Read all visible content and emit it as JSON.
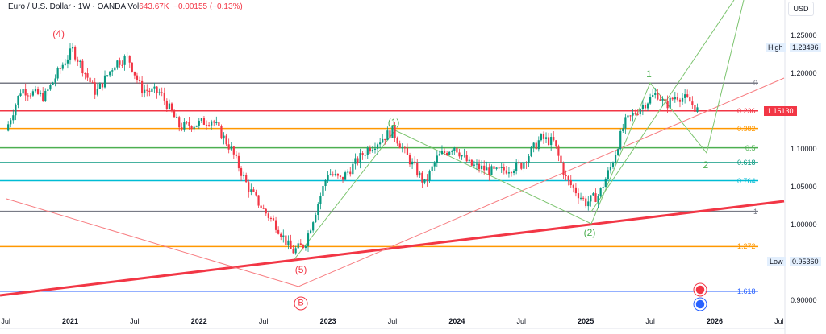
{
  "header": {
    "symbol": "Euro / U.S. Dollar · 1W · OANDA",
    "vol_label": "Vol",
    "vol_value": "643.67K",
    "change": "−0.00155 (−0.13%)"
  },
  "currency": "USD",
  "chart_data": {
    "type": "candlestick",
    "title": "Euro / U.S. Dollar · 1W · OANDA",
    "ylim": [
      0.88,
      1.29
    ],
    "xlim": [
      2020.49,
      2026.55
    ],
    "y_ticks": [
      "1.25000",
      "1.20000",
      "1.10000",
      "1.05000",
      "1.00000",
      "0.90000"
    ],
    "y_tick_values": [
      1.25,
      1.2,
      1.1,
      1.05,
      1.0,
      0.9
    ],
    "x_ticks": [
      {
        "label": "Jul",
        "t": 2020.5,
        "bold": false
      },
      {
        "label": "2021",
        "t": 2021,
        "bold": true
      },
      {
        "label": "Jul",
        "t": 2021.5,
        "bold": false
      },
      {
        "label": "2022",
        "t": 2022,
        "bold": true
      },
      {
        "label": "Jul",
        "t": 2022.5,
        "bold": false
      },
      {
        "label": "2023",
        "t": 2023,
        "bold": true
      },
      {
        "label": "Jul",
        "t": 2023.5,
        "bold": false
      },
      {
        "label": "2024",
        "t": 2024,
        "bold": true
      },
      {
        "label": "Jul",
        "t": 2024.5,
        "bold": false
      },
      {
        "label": "2025",
        "t": 2025,
        "bold": true
      },
      {
        "label": "Jul",
        "t": 2025.5,
        "bold": false
      },
      {
        "label": "2026",
        "t": 2026,
        "bold": true
      },
      {
        "label": "Jul",
        "t": 2026.5,
        "bold": false
      }
    ],
    "close_anchors": [
      [
        2020.5,
        1.125
      ],
      [
        2020.62,
        1.18
      ],
      [
        2020.8,
        1.17
      ],
      [
        2020.95,
        1.215
      ],
      [
        2021.02,
        1.232
      ],
      [
        2021.2,
        1.175
      ],
      [
        2021.35,
        1.215
      ],
      [
        2021.45,
        1.222
      ],
      [
        2021.55,
        1.18
      ],
      [
        2021.7,
        1.175
      ],
      [
        2021.85,
        1.13
      ],
      [
        2022.0,
        1.135
      ],
      [
        2022.1,
        1.14
      ],
      [
        2022.25,
        1.1
      ],
      [
        2022.38,
        1.05
      ],
      [
        2022.5,
        1.02
      ],
      [
        2022.6,
        1.0
      ],
      [
        2022.72,
        0.965
      ],
      [
        2022.82,
        0.975
      ],
      [
        2023.0,
        1.07
      ],
      [
        2023.1,
        1.06
      ],
      [
        2023.3,
        1.1
      ],
      [
        2023.5,
        1.125
      ],
      [
        2023.6,
        1.095
      ],
      [
        2023.75,
        1.055
      ],
      [
        2023.85,
        1.09
      ],
      [
        2023.98,
        1.105
      ],
      [
        2024.1,
        1.08
      ],
      [
        2024.3,
        1.07
      ],
      [
        2024.5,
        1.08
      ],
      [
        2024.65,
        1.115
      ],
      [
        2024.75,
        1.11
      ],
      [
        2024.85,
        1.06
      ],
      [
        2025.0,
        1.03
      ],
      [
        2025.1,
        1.04
      ],
      [
        2025.2,
        1.08
      ],
      [
        2025.3,
        1.135
      ],
      [
        2025.45,
        1.16
      ],
      [
        2025.55,
        1.175
      ],
      [
        2025.62,
        1.158
      ],
      [
        2025.7,
        1.172
      ],
      [
        2025.8,
        1.165
      ],
      [
        2025.87,
        1.1513
      ]
    ],
    "high": {
      "label": "High",
      "value": "1.23496"
    },
    "low": {
      "label": "Low",
      "value": "0.95360"
    },
    "last_price": "1.15130",
    "fib_levels": [
      {
        "label": "0",
        "price": 1.188,
        "color": "#787b86"
      },
      {
        "label": "0.236",
        "price": 1.1513,
        "color": "#f23645"
      },
      {
        "label": "0.382",
        "price": 1.128,
        "color": "#ff9800"
      },
      {
        "label": "0.5",
        "price": 1.1025,
        "color": "#4caf50"
      },
      {
        "label": "0.618",
        "price": 1.083,
        "color": "#089981"
      },
      {
        "label": "0.764",
        "price": 1.059,
        "color": "#00bcd4"
      },
      {
        "label": "1",
        "price": 1.0185,
        "color": "#787b86"
      },
      {
        "label": "1.272",
        "price": 0.972,
        "color": "#ff9800"
      },
      {
        "label": "1.618",
        "price": 0.913,
        "color": "#2962ff"
      }
    ],
    "wave_labels": [
      {
        "text": "(4)",
        "t": 2020.91,
        "p": 1.253,
        "color": "#f23645"
      },
      {
        "text": "(5)",
        "t": 2022.79,
        "p": 0.942,
        "color": "#f23645"
      },
      {
        "text": "B",
        "t": 2022.79,
        "p": 0.897,
        "color": "#f23645"
      },
      {
        "text": "(1)",
        "t": 2023.51,
        "p": 1.136,
        "color": "#4caf50"
      },
      {
        "text": "(2)",
        "t": 2025.03,
        "p": 0.99,
        "color": "#4caf50"
      },
      {
        "text": "1",
        "t": 2025.49,
        "p": 1.2,
        "color": "#4caf50"
      },
      {
        "text": "2",
        "t": 2025.93,
        "p": 1.08,
        "color": "#4caf50"
      }
    ],
    "colors": {
      "up": "#089981",
      "down": "#f23645",
      "green_line": "#7cc46f",
      "red_line": "#f23645"
    }
  }
}
